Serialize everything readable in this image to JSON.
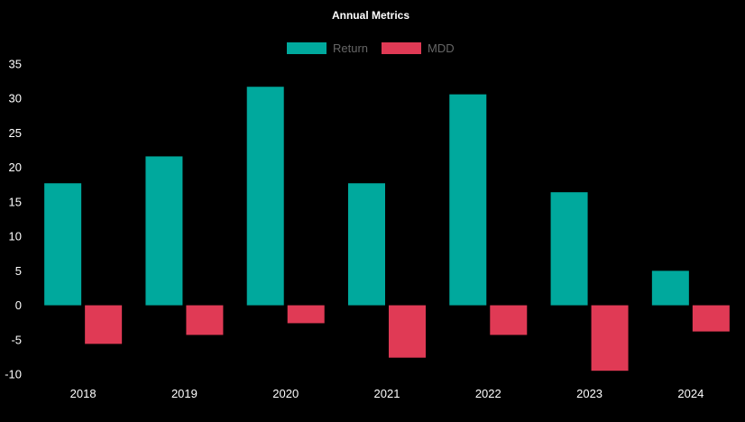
{
  "chart_data": {
    "type": "bar",
    "title": "Annual Metrics",
    "xlabel": "",
    "ylabel": "",
    "categories": [
      "2018",
      "2019",
      "2020",
      "2021",
      "2022",
      "2023",
      "2024"
    ],
    "series": [
      {
        "name": "Return",
        "color": "#00a99d",
        "values": [
          17.7,
          21.6,
          31.7,
          17.7,
          30.6,
          16.4,
          5.0
        ]
      },
      {
        "name": "MDD",
        "color": "#e03a55",
        "values": [
          -5.6,
          -4.3,
          -2.6,
          -7.6,
          -4.3,
          -9.5,
          -3.8
        ]
      }
    ],
    "ylim": [
      -10,
      35
    ],
    "yticks": [
      -10,
      -5,
      0,
      5,
      10,
      15,
      20,
      25,
      30,
      35
    ],
    "grid": false,
    "legend_position": "top-center",
    "background": "#000000"
  }
}
